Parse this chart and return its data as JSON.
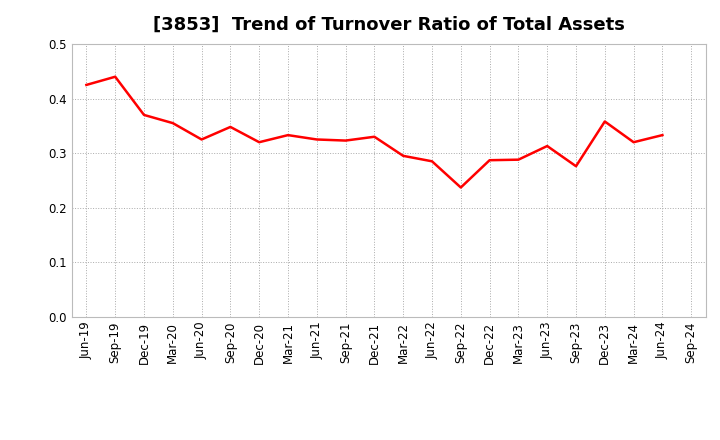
{
  "title": "[3853]  Trend of Turnover Ratio of Total Assets",
  "x_labels": [
    "Jun-19",
    "Sep-19",
    "Dec-19",
    "Mar-20",
    "Jun-20",
    "Sep-20",
    "Dec-20",
    "Mar-21",
    "Jun-21",
    "Sep-21",
    "Dec-21",
    "Mar-22",
    "Jun-22",
    "Sep-22",
    "Dec-22",
    "Mar-23",
    "Jun-23",
    "Sep-23",
    "Dec-23",
    "Mar-24",
    "Jun-24",
    "Sep-24"
  ],
  "y_values": [
    0.425,
    0.44,
    0.37,
    0.355,
    0.325,
    0.348,
    0.32,
    0.333,
    0.325,
    0.323,
    0.33,
    0.295,
    0.285,
    0.237,
    0.287,
    0.288,
    0.313,
    0.276,
    0.358,
    0.32,
    0.333,
    null
  ],
  "ylim": [
    0.0,
    0.5
  ],
  "yticks": [
    0.0,
    0.1,
    0.2,
    0.3,
    0.4,
    0.5
  ],
  "line_color": "#FF0000",
  "line_width": 1.8,
  "background_color": "#ffffff",
  "plot_bg_color": "#ffffff",
  "grid_color": "#aaaaaa",
  "title_fontsize": 13,
  "tick_fontsize": 8.5
}
